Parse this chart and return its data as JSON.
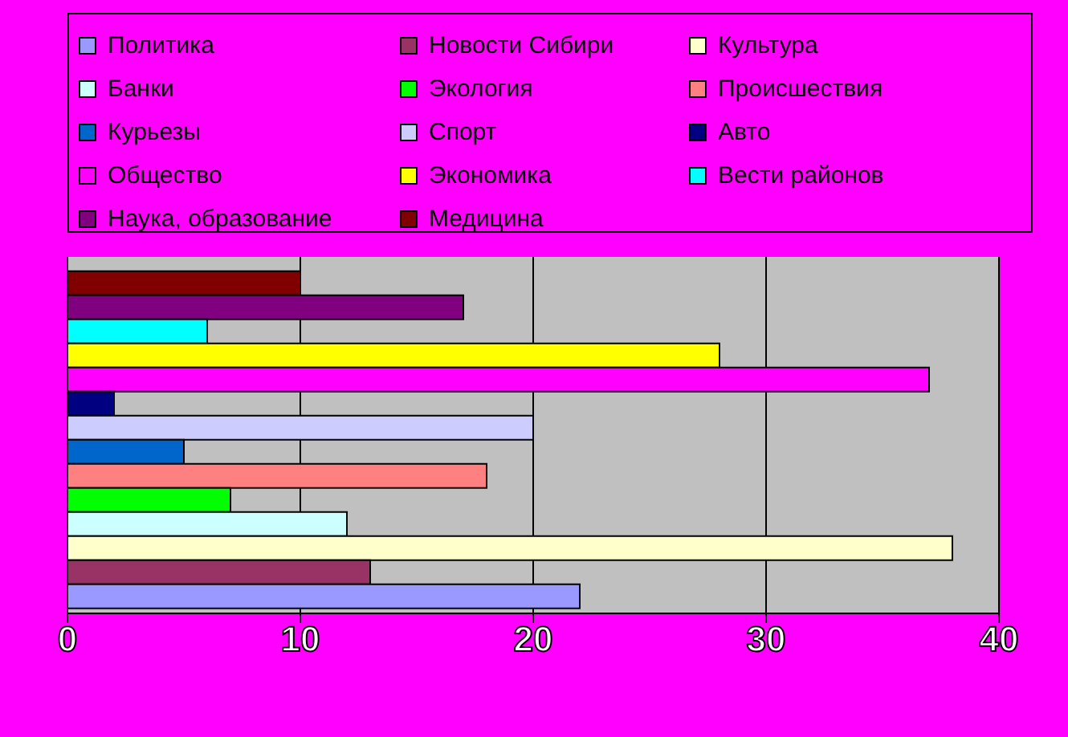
{
  "chart_data": {
    "type": "bar",
    "orientation": "horizontal",
    "categories": [
      null
    ],
    "series": [
      {
        "name": "Политика",
        "color": "#9999ff",
        "values": [
          22
        ]
      },
      {
        "name": "Новости Сибири",
        "color": "#993366",
        "values": [
          13
        ]
      },
      {
        "name": "Культура",
        "color": "#ffffcc",
        "values": [
          38
        ]
      },
      {
        "name": "Банки",
        "color": "#ccffff",
        "values": [
          12
        ]
      },
      {
        "name": "Экология",
        "color": "#00ff00",
        "values": [
          7
        ]
      },
      {
        "name": "Происшествия",
        "color": "#ff8080",
        "values": [
          18
        ]
      },
      {
        "name": "Курьезы",
        "color": "#0066cc",
        "values": [
          5
        ]
      },
      {
        "name": "Спорт",
        "color": "#ccccff",
        "values": [
          20
        ]
      },
      {
        "name": "Авто",
        "color": "#000080",
        "values": [
          2
        ]
      },
      {
        "name": "Общество",
        "color": "#ff00ff",
        "values": [
          37
        ]
      },
      {
        "name": "Экономика",
        "color": "#ffff00",
        "values": [
          28
        ]
      },
      {
        "name": "Вести районов",
        "color": "#00ffff",
        "values": [
          6
        ]
      },
      {
        "name": "Наука, образование",
        "color": "#800080",
        "values": [
          17
        ]
      },
      {
        "name": "Медицина",
        "color": "#800000",
        "values": [
          10
        ]
      }
    ],
    "xlim": [
      0,
      40
    ],
    "xticks": [
      0,
      10,
      20,
      30,
      40
    ],
    "grid": "x",
    "legend": "top",
    "tick_labels": "x"
  }
}
